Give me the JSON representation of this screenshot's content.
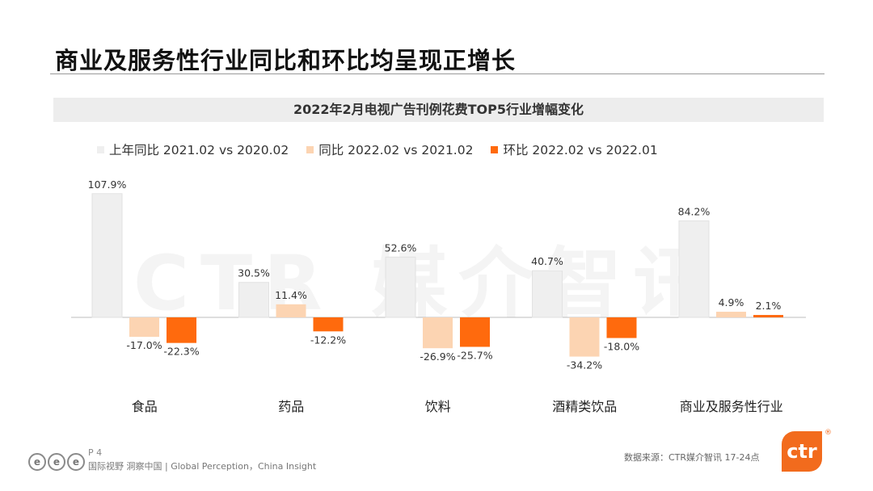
{
  "page": {
    "title": "商业及服务性行业同比和环比均呈现正增长",
    "watermark": "CTR 媒介智讯"
  },
  "chart_data": {
    "type": "bar",
    "title": "2022年2月电视广告刊例花费TOP5行业增幅变化",
    "categories": [
      "食品",
      "药品",
      "饮料",
      "酒精类饮品",
      "商业及服务性行业"
    ],
    "series": [
      {
        "name": "上年同比 2021.02 vs 2020.02",
        "color": "#efefef",
        "values": [
          107.9,
          30.5,
          52.6,
          40.7,
          84.2
        ],
        "labels": [
          "107.9%",
          "30.5%",
          "52.6%",
          "40.7%",
          "84.2%"
        ]
      },
      {
        "name": "同比 2022.02 vs 2021.02",
        "color": "#fcd4b2",
        "values": [
          -17.0,
          11.4,
          -26.9,
          -34.2,
          4.9
        ],
        "labels": [
          "-17.0%",
          "11.4%",
          "-26.9%",
          "-34.2%",
          "4.9%"
        ]
      },
      {
        "name": "环比 2022.02 vs 2022.01",
        "color": "#ff6a0d",
        "values": [
          -22.3,
          -12.2,
          -25.7,
          -18.0,
          2.1
        ],
        "labels": [
          "-22.3%",
          "-12.2%",
          "-25.7%",
          "-18.0%",
          "2.1%"
        ]
      }
    ],
    "legend_position": "top-left",
    "grid": false
  },
  "footer": {
    "logo_letters": [
      "e",
      "e",
      "e"
    ],
    "page_number": "P 4",
    "slogan": "国际视野  洞察中国 | Global Perception，China Insight",
    "source": "数据来源：CTR媒介智讯     17-24点",
    "brand": "ctr",
    "registered": "®"
  }
}
